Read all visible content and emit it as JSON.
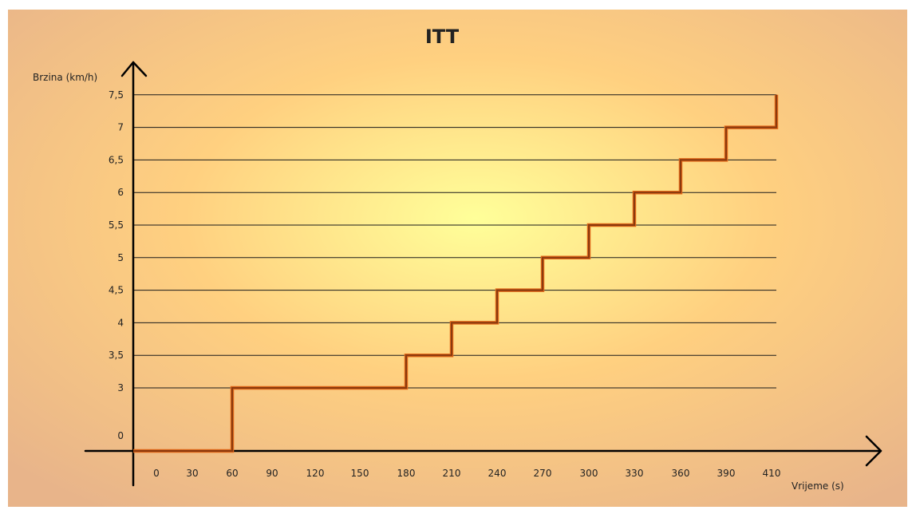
{
  "chart_data": {
    "type": "line",
    "step": true,
    "title": "ITT",
    "xlabel": "Vrijeme (s)",
    "ylabel": "Brzina (km/h)",
    "x_ticks": [
      0,
      30,
      60,
      90,
      120,
      150,
      180,
      210,
      240,
      270,
      300,
      330,
      360,
      390,
      410
    ],
    "y_ticks": [
      "0",
      "3",
      "3,5",
      "4",
      "4,5",
      "5",
      "5,5",
      "6",
      "6,5",
      "7",
      "7,5"
    ],
    "gridlines": [
      "3",
      "3,5",
      "4",
      "4,5",
      "5",
      "5,5",
      "6",
      "6,5",
      "7",
      "7,5"
    ],
    "grid": true,
    "series": [
      {
        "x": [
          0,
          60,
          60,
          180,
          180,
          210,
          210,
          240,
          240,
          270,
          270,
          300,
          300,
          330,
          330,
          360,
          360,
          390,
          390,
          410,
          410
        ],
        "y": [
          0,
          0,
          3,
          3,
          3.5,
          3.5,
          4,
          4,
          4.5,
          4.5,
          5,
          5,
          5.5,
          5.5,
          6,
          6,
          6.5,
          6.5,
          7,
          7,
          7.5
        ]
      }
    ],
    "colors": {
      "line": "#8b3a0e",
      "line_shadow": "#e46a1a",
      "grid": "#1a1a1a",
      "axis": "#000000",
      "bg_center": "#ffff99",
      "bg_mid": "#ffd080",
      "bg_edge": "#e8b48a"
    }
  }
}
